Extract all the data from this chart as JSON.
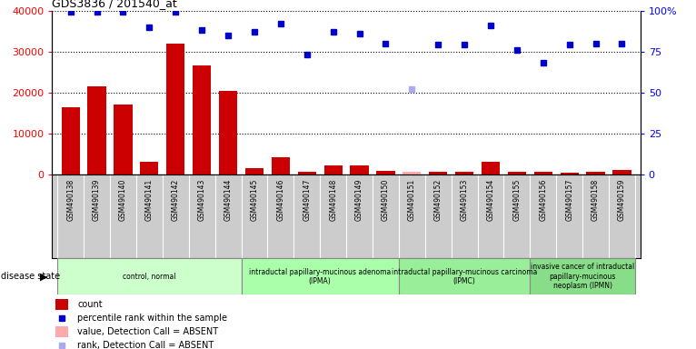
{
  "title": "GDS3836 / 201540_at",
  "samples": [
    "GSM490138",
    "GSM490139",
    "GSM490140",
    "GSM490141",
    "GSM490142",
    "GSM490143",
    "GSM490144",
    "GSM490145",
    "GSM490146",
    "GSM490147",
    "GSM490148",
    "GSM490149",
    "GSM490150",
    "GSM490151",
    "GSM490152",
    "GSM490153",
    "GSM490154",
    "GSM490155",
    "GSM490156",
    "GSM490157",
    "GSM490158",
    "GSM490159"
  ],
  "counts": [
    16500,
    21500,
    17000,
    3200,
    32000,
    26500,
    20500,
    1500,
    4200,
    600,
    2200,
    2200,
    900,
    700,
    700,
    700,
    3200,
    700,
    700,
    400,
    700,
    1000
  ],
  "absent_flags": [
    false,
    false,
    false,
    false,
    false,
    false,
    false,
    false,
    false,
    false,
    false,
    false,
    false,
    true,
    false,
    false,
    false,
    false,
    false,
    false,
    false,
    false
  ],
  "percentile_ranks": [
    99,
    99,
    99,
    90,
    99,
    88,
    85,
    87,
    92,
    73,
    87,
    86,
    80,
    52,
    79,
    79,
    91,
    76,
    68,
    79,
    80,
    80
  ],
  "absent_rank": [
    false,
    false,
    false,
    false,
    false,
    false,
    false,
    false,
    false,
    false,
    false,
    false,
    false,
    true,
    false,
    false,
    false,
    false,
    false,
    false,
    false,
    false
  ],
  "ylim_left": [
    0,
    40000
  ],
  "ylim_right": [
    0,
    100
  ],
  "yticks_left": [
    0,
    10000,
    20000,
    30000,
    40000
  ],
  "yticks_right": [
    0,
    25,
    50,
    75,
    100
  ],
  "groups": [
    {
      "label": "control, normal",
      "start": 0,
      "end": 7,
      "color": "#ccffcc"
    },
    {
      "label": "intraductal papillary-mucinous adenoma\n(IPMA)",
      "start": 7,
      "end": 13,
      "color": "#aaffaa"
    },
    {
      "label": "intraductal papillary-mucinous carcinoma\n(IPMC)",
      "start": 13,
      "end": 18,
      "color": "#99ee99"
    },
    {
      "label": "invasive cancer of intraductal\npapillary-mucinous\nneoplasm (IPMN)",
      "start": 18,
      "end": 22,
      "color": "#88dd88"
    }
  ],
  "bar_color": "#cc0000",
  "absent_bar_color": "#ffaaaa",
  "dot_color": "#0000cc",
  "absent_dot_color": "#aaaaee",
  "plot_bg": "#ffffff",
  "xtick_bg": "#cccccc",
  "legend_items": [
    {
      "label": "count",
      "color": "#cc0000",
      "is_bar": true
    },
    {
      "label": "percentile rank within the sample",
      "color": "#0000cc",
      "is_bar": false
    },
    {
      "label": "value, Detection Call = ABSENT",
      "color": "#ffaaaa",
      "is_bar": true
    },
    {
      "label": "rank, Detection Call = ABSENT",
      "color": "#aaaaee",
      "is_bar": false
    }
  ]
}
